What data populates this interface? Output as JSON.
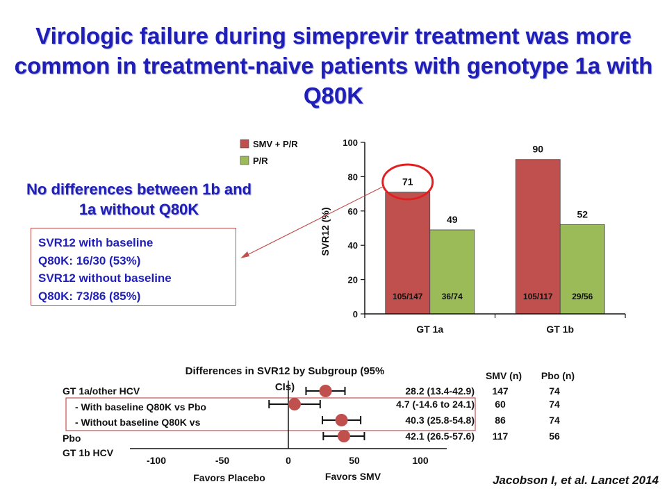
{
  "slide": {
    "title": "Virologic failure during simeprevir treatment was more common in treatment-naive patients with genotype 1a with Q80K",
    "subhead": "No differences between 1b and 1a without Q80K",
    "infobox": [
      "SVR12 with baseline",
      "Q80K: 16/30 (53%)",
      "SVR12 without baseline",
      "Q80K: 73/86 (85%)"
    ],
    "citation": "Jacobson I, et al. Lancet 2014"
  },
  "colors": {
    "smv": "#c0504d",
    "pr": "#9bbb59",
    "marker": "#c0504d",
    "title": "#1f1fb8",
    "circle": "#e02020"
  },
  "chart_data": [
    {
      "type": "bar",
      "categories": [
        "GT 1a",
        "GT 1b"
      ],
      "series": [
        {
          "name": "SMV + P/R",
          "values": [
            71,
            90
          ],
          "counts": [
            "105/147",
            "105/117"
          ]
        },
        {
          "name": "P/R",
          "values": [
            49,
            52
          ],
          "counts": [
            "36/74",
            "29/56"
          ]
        }
      ],
      "ylabel": "SVR12 (%)",
      "ylim": [
        0,
        100
      ],
      "yticks": [
        0,
        20,
        40,
        60,
        80,
        100
      ],
      "legend": "top-left",
      "grid": false
    },
    {
      "type": "scatter",
      "title": "Differences in SVR12 by Subgroup (95% CIs)",
      "xlim": [
        -100,
        120
      ],
      "xticks": [
        -100,
        -50,
        0,
        50,
        100
      ],
      "xlabel_left": "Favors Placebo",
      "xlabel_right": "Favors SMV",
      "row_labels": [
        "GT 1a/other HCV",
        "- With baseline Q80K vs Pbo",
        "- Without baseline Q80K vs",
        "Pbo",
        "GT 1b HCV"
      ],
      "points": [
        {
          "estimate": 28.2,
          "ci": [
            13.4,
            42.9
          ],
          "text": "28.2 (13.4-42.9)",
          "smv_n": "147",
          "pbo_n": "74"
        },
        {
          "estimate": 4.7,
          "ci": [
            -14.6,
            24.1
          ],
          "text": "4.7 (-14.6 to 24.1)",
          "smv_n": "60",
          "pbo_n": "74"
        },
        {
          "estimate": 40.3,
          "ci": [
            25.8,
            54.8
          ],
          "text": "40.3 (25.8-54.8)",
          "smv_n": "86",
          "pbo_n": "74"
        },
        {
          "estimate": 42.1,
          "ci": [
            26.5,
            57.6
          ],
          "text": "42.1 (26.5-57.6)",
          "smv_n": "117",
          "pbo_n": "56"
        }
      ],
      "col_headers": [
        "SMV (n)",
        "Pbo (n)"
      ]
    }
  ]
}
